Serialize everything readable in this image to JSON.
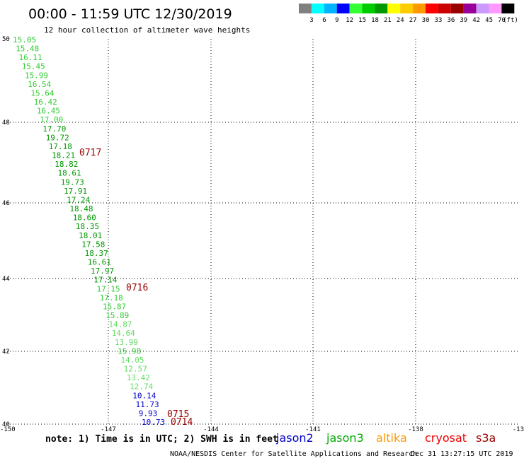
{
  "header": {
    "title": "00:00 - 11:59 UTC 12/30/2019",
    "subtitle": "12 hour collection of altimeter wave heights"
  },
  "colorbar": {
    "swatches": [
      "#808080",
      "#00ffff",
      "#00b4ff",
      "#0000ff",
      "#33ff33",
      "#00cc00",
      "#009900",
      "#ffff00",
      "#ffcc00",
      "#ff9900",
      "#ff0000",
      "#cc0000",
      "#990000",
      "#990099",
      "#cc99ff",
      "#ff99ff",
      "#000000"
    ],
    "labels": [
      "3",
      "6",
      "9",
      "12",
      "15",
      "18",
      "21",
      "24",
      "27",
      "30",
      "33",
      "36",
      "39",
      "42",
      "45",
      "70",
      "(ft)"
    ]
  },
  "axes": {
    "x_ticks": [
      "-150",
      "-147",
      "-144",
      "-141",
      "-138",
      "-13"
    ],
    "y_ticks": [
      "50",
      "48",
      "46",
      "44",
      "42",
      "40"
    ]
  },
  "observations": [
    {
      "value": "15.05",
      "color": "#33cc33"
    },
    {
      "value": "15.48",
      "color": "#33cc33"
    },
    {
      "value": "16.11",
      "color": "#33cc33"
    },
    {
      "value": "15.45",
      "color": "#33cc33"
    },
    {
      "value": "15.99",
      "color": "#33cc33"
    },
    {
      "value": "16.54",
      "color": "#33cc33"
    },
    {
      "value": "15.64",
      "color": "#33cc33"
    },
    {
      "value": "16.42",
      "color": "#33cc33"
    },
    {
      "value": "16.45",
      "color": "#33cc33"
    },
    {
      "value": "17.00",
      "color": "#33cc33"
    },
    {
      "value": "17.70",
      "color": "#009900"
    },
    {
      "value": "19.72",
      "color": "#009900"
    },
    {
      "value": "17.18",
      "color": "#009900"
    },
    {
      "value": "18.21",
      "color": "#009900"
    },
    {
      "value": "18.82",
      "color": "#009900"
    },
    {
      "value": "18.61",
      "color": "#009900"
    },
    {
      "value": "19.73",
      "color": "#009900"
    },
    {
      "value": "17.91",
      "color": "#009900"
    },
    {
      "value": "17.24",
      "color": "#009900"
    },
    {
      "value": "18.48",
      "color": "#009900"
    },
    {
      "value": "18.60",
      "color": "#009900"
    },
    {
      "value": "18.35",
      "color": "#009900"
    },
    {
      "value": "18.01",
      "color": "#009900"
    },
    {
      "value": "17.58",
      "color": "#009900"
    },
    {
      "value": "18.37",
      "color": "#009900"
    },
    {
      "value": "16.61",
      "color": "#009900"
    },
    {
      "value": "17.97",
      "color": "#009900"
    },
    {
      "value": "17.14",
      "color": "#009900"
    },
    {
      "value": "17.15",
      "color": "#33cc33"
    },
    {
      "value": "17.18",
      "color": "#33cc33"
    },
    {
      "value": "15.87",
      "color": "#33cc33"
    },
    {
      "value": "15.89",
      "color": "#33cc33"
    },
    {
      "value": "14.87",
      "color": "#66dd66"
    },
    {
      "value": "14.64",
      "color": "#66dd66"
    },
    {
      "value": "13.99",
      "color": "#66dd66"
    },
    {
      "value": "15.98",
      "color": "#33cc33"
    },
    {
      "value": "14.05",
      "color": "#66dd66"
    },
    {
      "value": "12.57",
      "color": "#66dd66"
    },
    {
      "value": "13.42",
      "color": "#66dd66"
    },
    {
      "value": "12.74",
      "color": "#66dd66"
    },
    {
      "value": "10.14",
      "color": "#0000cc"
    },
    {
      "value": "11.73",
      "color": "#0000cc"
    },
    {
      "value": "9.93",
      "color": "#0000cc"
    },
    {
      "value": "10.73",
      "color": "#0000cc"
    }
  ],
  "time_labels": [
    {
      "text": "0717",
      "color": "#990000"
    },
    {
      "text": "0716",
      "color": "#990000"
    },
    {
      "text": "0715",
      "color": "#990000"
    },
    {
      "text": "0714",
      "color": "#990000"
    }
  ],
  "footer": {
    "note": "note: 1) Time is in UTC; 2) SWH is in feet",
    "satellites": [
      {
        "name": "jason2",
        "color": "#0000cc"
      },
      {
        "name": "jason3",
        "color": "#00aa00"
      },
      {
        "name": "altika",
        "color": "#ff9900"
      },
      {
        "name": "cryosat",
        "color": "#ee0000"
      },
      {
        "name": "s3a",
        "color": "#990000"
      }
    ],
    "credit": "NOAA/NESDIS Center for Satellite Applications and Research",
    "timestamp": "Dec 31 13:27:15 UTC 2019"
  }
}
